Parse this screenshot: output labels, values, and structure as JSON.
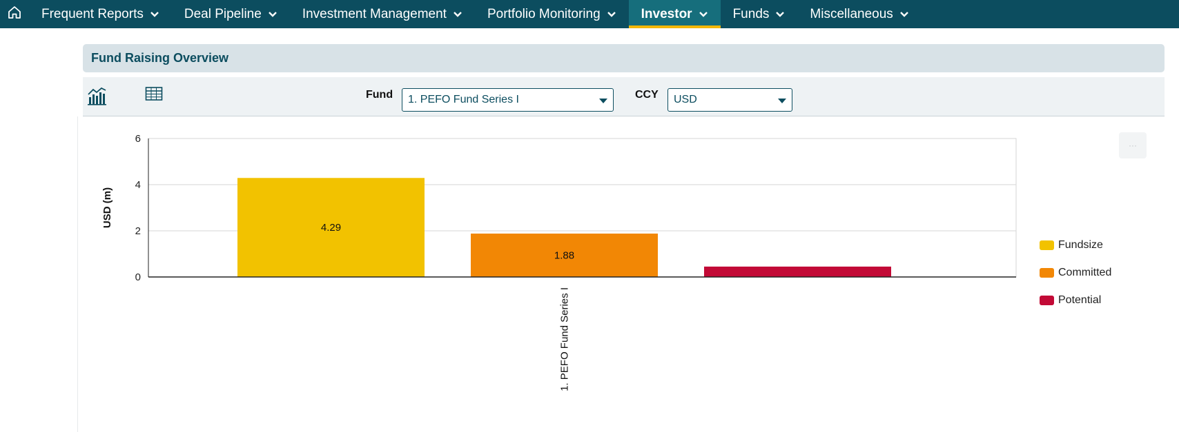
{
  "nav": {
    "items": [
      {
        "label": "Frequent Reports",
        "active": false
      },
      {
        "label": "Deal Pipeline",
        "active": false
      },
      {
        "label": "Investment Management",
        "active": false
      },
      {
        "label": "Portfolio Monitoring",
        "active": false
      },
      {
        "label": "Investor",
        "active": true
      },
      {
        "label": "Funds",
        "active": false
      },
      {
        "label": "Miscellaneous",
        "active": false
      }
    ]
  },
  "panel": {
    "title": "Fund Raising Overview"
  },
  "toolbar": {
    "fund_label": "Fund",
    "fund_value": "1. PEFO Fund Series I",
    "ccy_label": "CCY",
    "ccy_value": "USD",
    "menu_label": "···"
  },
  "colors": {
    "nav_bg": "#0c4d5f",
    "accent": "#f2b705",
    "fundsize": "#f2c200",
    "committed": "#f28705",
    "potential": "#c20a36"
  },
  "chart_data": {
    "type": "bar",
    "categories": [
      "1. PEFO Fund Series I"
    ],
    "series": [
      {
        "name": "Fundsize",
        "values": [
          4.29
        ],
        "label": "4.29"
      },
      {
        "name": "Committed",
        "values": [
          1.88
        ],
        "label": "1.88"
      },
      {
        "name": "Potential",
        "values": [
          0.45
        ],
        "label": ""
      }
    ],
    "title": "",
    "xlabel": "",
    "ylabel": "USD (m)",
    "ylim": [
      0,
      6
    ],
    "yticks": [
      "0",
      "2",
      "4",
      "6"
    ],
    "grid": true,
    "legend_position": "right"
  }
}
